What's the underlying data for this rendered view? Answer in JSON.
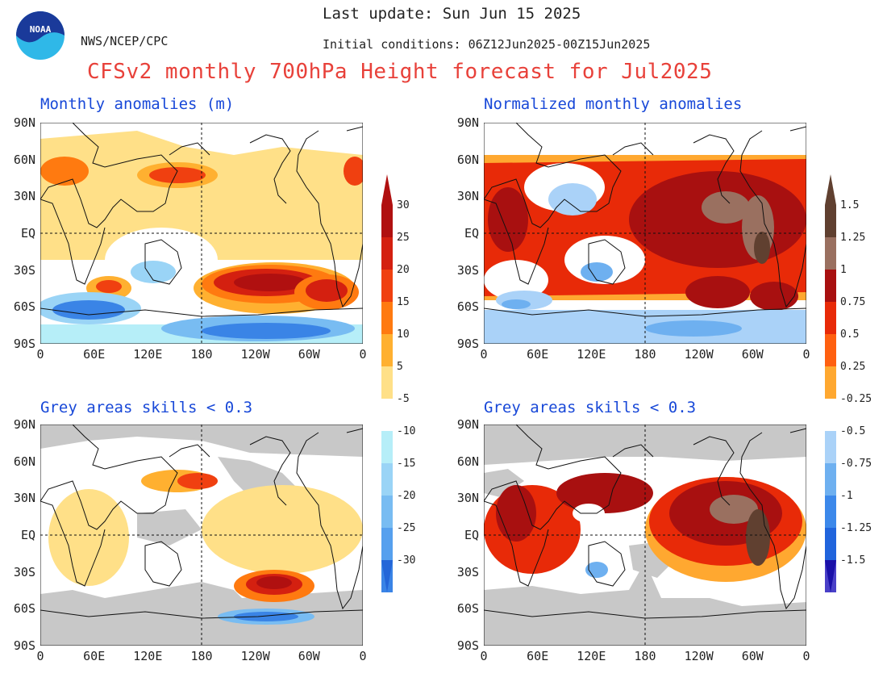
{
  "header": {
    "agency": "NWS/NCEP/CPC",
    "last_update": "Last update: Sun Jun 15 2025",
    "initial_conditions": "Initial conditions: 06Z12Jun2025-00Z15Jun2025",
    "title": "CFSv2 monthly 700hPa Height forecast for Jul2025",
    "logo_text": "NOAA"
  },
  "panels": {
    "top_left": "Monthly anomalies (m)",
    "top_right": "Normalized monthly anomalies",
    "bottom_left": "Grey areas skills < 0.3",
    "bottom_right": "Grey areas skills < 0.3"
  },
  "axes": {
    "lat_labels": [
      "90N",
      "60N",
      "30N",
      "EQ",
      "30S",
      "60S",
      "90S"
    ],
    "lon_labels": [
      "0",
      "60E",
      "120E",
      "180",
      "120W",
      "60W",
      "0"
    ]
  },
  "colorbar_left": {
    "positive_labels": [
      "30",
      "25",
      "20",
      "15",
      "10",
      "5"
    ],
    "negative_labels": [
      "-5",
      "-10",
      "-15",
      "-20",
      "-25",
      "-30"
    ],
    "positive_colors": [
      "#b01010",
      "#d42010",
      "#f04010",
      "#ff7a10",
      "#ffb030",
      "#ffe088"
    ],
    "negative_colors": [
      "#b6eef8",
      "#9ad4f6",
      "#78bcf2",
      "#56a0ee",
      "#3a84e6",
      "#2466d8"
    ]
  },
  "colorbar_right": {
    "positive_labels": [
      "1.5",
      "1.25",
      "1",
      "0.75",
      "0.5",
      "0.25"
    ],
    "negative_labels": [
      "-0.25",
      "-0.5",
      "-0.75",
      "-1",
      "-1.25",
      "-1.5"
    ],
    "positive_colors": [
      "#604030",
      "#9a7060",
      "#a81010",
      "#e82a08",
      "#ff6010",
      "#ffa830"
    ],
    "negative_colors": [
      "#aad2f8",
      "#6eb0f0",
      "#3c88ea",
      "#2064dc",
      "#4a40c8",
      "#1a10a8"
    ]
  },
  "colors": {
    "title_red": "#e8413a",
    "panel_title_blue": "#1848d8",
    "grey_mask": "#c8c8c8"
  }
}
